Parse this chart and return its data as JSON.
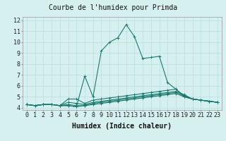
{
  "title": "Courbe de l'humidex pour Primda",
  "xlabel": "Humidex (Indice chaleur)",
  "ylabel": "",
  "xlim": [
    -0.5,
    23.5
  ],
  "ylim": [
    3.8,
    12.3
  ],
  "yticks": [
    4,
    5,
    6,
    7,
    8,
    9,
    10,
    11,
    12
  ],
  "xticks": [
    0,
    1,
    2,
    3,
    4,
    5,
    6,
    7,
    8,
    9,
    10,
    11,
    12,
    13,
    14,
    15,
    16,
    17,
    18,
    19,
    20,
    21,
    22,
    23
  ],
  "bg_color": "#d6f0f0",
  "grid_color": "#b8dede",
  "line_color": "#1a7a6e",
  "lines": [
    {
      "x": [
        0,
        1,
        2,
        3,
        4,
        5,
        6,
        7,
        8,
        9,
        10,
        11,
        12,
        13,
        14,
        15,
        16,
        17,
        18,
        19,
        20,
        21,
        22,
        23
      ],
      "y": [
        4.3,
        4.2,
        4.3,
        4.3,
        4.2,
        4.2,
        4.1,
        6.9,
        5.0,
        9.2,
        10.0,
        10.4,
        11.6,
        10.5,
        8.5,
        8.6,
        8.7,
        6.3,
        5.7,
        5.1,
        4.8,
        4.7,
        4.6,
        4.5
      ]
    },
    {
      "x": [
        0,
        1,
        2,
        3,
        4,
        5,
        6,
        7,
        8,
        9,
        10,
        11,
        12,
        13,
        14,
        15,
        16,
        17,
        18,
        19,
        20,
        21,
        22,
        23
      ],
      "y": [
        4.3,
        4.2,
        4.3,
        4.3,
        4.2,
        4.8,
        4.8,
        4.4,
        4.7,
        4.8,
        4.9,
        5.0,
        5.1,
        5.2,
        5.3,
        5.4,
        5.5,
        5.6,
        5.7,
        5.0,
        4.8,
        4.7,
        4.6,
        4.5
      ]
    },
    {
      "x": [
        0,
        1,
        2,
        3,
        4,
        5,
        6,
        7,
        8,
        9,
        10,
        11,
        12,
        13,
        14,
        15,
        16,
        17,
        18,
        19,
        20,
        21,
        22,
        23
      ],
      "y": [
        4.3,
        4.2,
        4.3,
        4.3,
        4.2,
        4.5,
        4.4,
        4.3,
        4.5,
        4.6,
        4.7,
        4.8,
        4.9,
        5.0,
        5.1,
        5.2,
        5.3,
        5.4,
        5.5,
        5.2,
        4.8,
        4.7,
        4.6,
        4.5
      ]
    },
    {
      "x": [
        0,
        1,
        2,
        3,
        4,
        5,
        6,
        7,
        8,
        9,
        10,
        11,
        12,
        13,
        14,
        15,
        16,
        17,
        18,
        19,
        20,
        21,
        22,
        23
      ],
      "y": [
        4.3,
        4.2,
        4.3,
        4.3,
        4.2,
        4.3,
        4.2,
        4.2,
        4.4,
        4.5,
        4.6,
        4.7,
        4.8,
        4.9,
        5.0,
        5.1,
        5.2,
        5.3,
        5.4,
        5.1,
        4.8,
        4.7,
        4.6,
        4.5
      ]
    },
    {
      "x": [
        0,
        1,
        2,
        3,
        4,
        5,
        6,
        7,
        8,
        9,
        10,
        11,
        12,
        13,
        14,
        15,
        16,
        17,
        18,
        19,
        20,
        21,
        22,
        23
      ],
      "y": [
        4.3,
        4.2,
        4.3,
        4.3,
        4.2,
        4.2,
        4.1,
        4.2,
        4.3,
        4.4,
        4.5,
        4.6,
        4.7,
        4.8,
        4.9,
        5.0,
        5.1,
        5.2,
        5.3,
        5.0,
        4.8,
        4.7,
        4.6,
        4.5
      ]
    }
  ],
  "marker": "+",
  "marker_size": 3,
  "line_width": 0.8,
  "tick_fontsize": 6,
  "xlabel_fontsize": 7,
  "title_fontsize": 7
}
